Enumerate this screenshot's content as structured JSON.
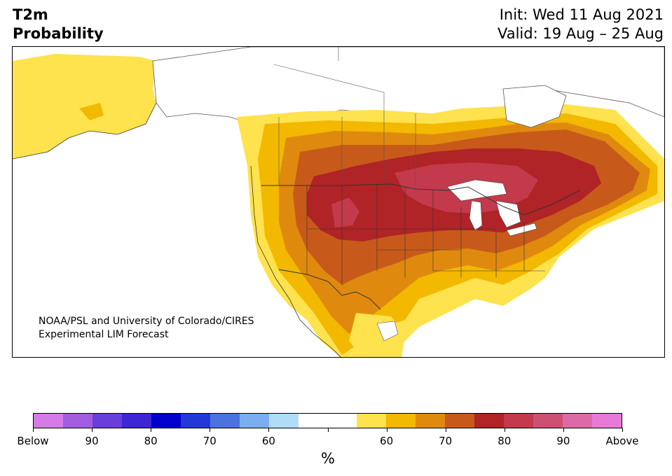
{
  "header": {
    "variable": "T2m",
    "product": "Probability",
    "init": "Init: Wed 11 Aug 2021",
    "valid": "Valid: 19 Aug – 25 Aug"
  },
  "map": {
    "credit_line1": "NOAA/PSL and University of Colorado/CIRES",
    "credit_line2": "Experimental LIM Forecast",
    "land_color": "#ffffff",
    "border_color": "#333333",
    "lake_color": "#ffffff"
  },
  "colorbar": {
    "colors": [
      "#d67ae8",
      "#a25ee0",
      "#6a3fd9",
      "#3d26d4",
      "#0000cc",
      "#2239d8",
      "#4a73e0",
      "#7aaef0",
      "#b0dcf8",
      "#ffffff",
      "#ffffff",
      "#fee24e",
      "#f3b800",
      "#df8a0f",
      "#c75a1a",
      "#b02326",
      "#c23a4b",
      "#cd5073",
      "#dc6aa5",
      "#e77ad8"
    ],
    "tick_labels": [
      "Below",
      "90",
      "80",
      "70",
      "60",
      "",
      "60",
      "70",
      "80",
      "90",
      "Above"
    ],
    "unit": "%"
  }
}
